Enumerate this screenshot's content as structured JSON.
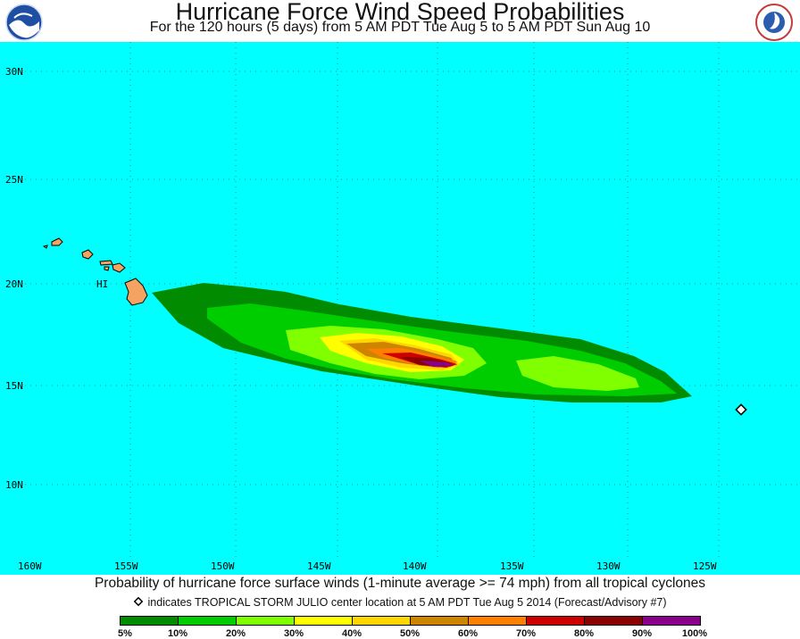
{
  "header": {
    "title": "Hurricane Force Wind Speed Probabilities",
    "subtitle": "For the 120 hours (5 days) from 5 AM PDT Tue Aug 5 to 5 AM PDT Sun Aug 10",
    "left_logo": "NOAA",
    "right_logo": "NATIONAL WEATHER SERVICE"
  },
  "map": {
    "ocean_color": "#00ffff",
    "land_color": "#f4a460",
    "lat_labels": [
      "30N",
      "25N",
      "20N",
      "15N",
      "10N"
    ],
    "lon_labels": [
      "160W",
      "155W",
      "150W",
      "145W",
      "140W",
      "135W",
      "130W",
      "125W"
    ],
    "state_label": "HI",
    "storm_marker": {
      "name": "TROPICAL STORM JULIO",
      "lat": 13.8,
      "lon": -123.5
    }
  },
  "footer": {
    "caption": "Probability of hurricane force surface winds (1-minute average >= 74 mph) from all tropical cyclones",
    "note": "indicates TROPICAL STORM JULIO center location at 5 AM PDT Tue Aug 5 2014 (Forecast/Advisory #7)"
  },
  "legend": {
    "labels": [
      "5%",
      "10%",
      "20%",
      "30%",
      "40%",
      "50%",
      "60%",
      "70%",
      "80%",
      "90%",
      "100%"
    ],
    "colors": [
      "#008b00",
      "#00cd00",
      "#7fff00",
      "#ffff00",
      "#ffd700",
      "#cd8500",
      "#ff7f00",
      "#cd0000",
      "#8b0000",
      "#8b008b"
    ]
  }
}
